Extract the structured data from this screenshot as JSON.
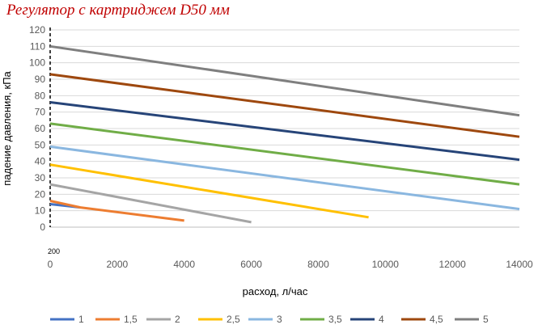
{
  "chart_data": {
    "type": "line",
    "title": "Регулятор с картриджем D50 мм",
    "xlabel": "расход, л/час",
    "ylabel": "падение давления, кПа",
    "xlim": [
      0,
      14000
    ],
    "ylim": [
      0,
      120
    ],
    "xticks": [
      0,
      2000,
      4000,
      6000,
      8000,
      10000,
      12000,
      14000
    ],
    "yticks": [
      0,
      10,
      20,
      30,
      40,
      50,
      60,
      70,
      80,
      90,
      100,
      110,
      120
    ],
    "grid": "horizontal",
    "legend": "bottom",
    "reference_line": {
      "x": 0,
      "label": "200"
    },
    "series": [
      {
        "name": "1",
        "color": "#4472c4",
        "points": [
          [
            0,
            14
          ],
          [
            900,
            12
          ]
        ]
      },
      {
        "name": "1,5",
        "color": "#ed7d31",
        "points": [
          [
            0,
            16
          ],
          [
            900,
            12
          ],
          [
            4000,
            4
          ]
        ]
      },
      {
        "name": "2",
        "color": "#a5a5a5",
        "points": [
          [
            0,
            26
          ],
          [
            6000,
            3
          ]
        ]
      },
      {
        "name": "2,5",
        "color": "#ffc000",
        "points": [
          [
            0,
            38
          ],
          [
            9500,
            6
          ]
        ]
      },
      {
        "name": "3",
        "color": "#8ab7e0",
        "points": [
          [
            0,
            49
          ],
          [
            14000,
            11
          ]
        ]
      },
      {
        "name": "3,5",
        "color": "#70ad47",
        "points": [
          [
            0,
            63
          ],
          [
            14000,
            26
          ]
        ]
      },
      {
        "name": "4",
        "color": "#264478",
        "points": [
          [
            0,
            76
          ],
          [
            14000,
            41
          ]
        ]
      },
      {
        "name": "4,5",
        "color": "#9e480e",
        "points": [
          [
            0,
            93
          ],
          [
            14000,
            55
          ]
        ]
      },
      {
        "name": "5",
        "color": "#7f7f7f",
        "points": [
          [
            0,
            110
          ],
          [
            14000,
            68
          ]
        ]
      }
    ]
  }
}
